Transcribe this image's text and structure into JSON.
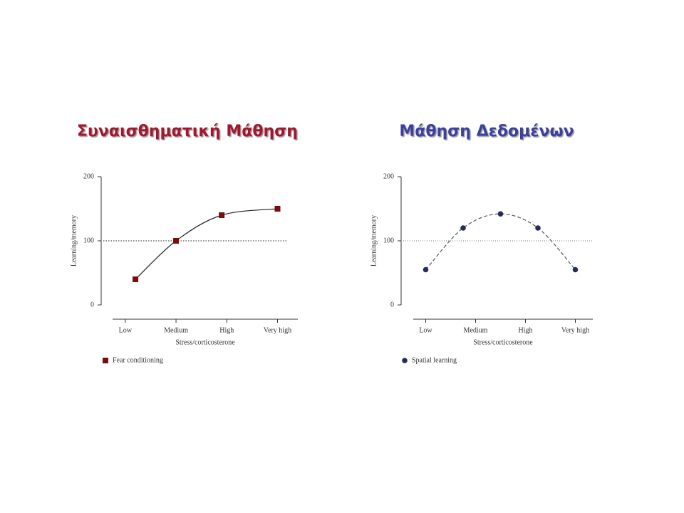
{
  "chart_data": [
    {
      "type": "line",
      "title": "Συναισθηματική Μάθηση",
      "title_color": "#a3182f",
      "xlabel": "Stress/corticosterone",
      "ylabel": "Learning/memory",
      "xlim": [
        0.75,
        4.4
      ],
      "ylim": [
        0,
        200
      ],
      "xticks": [
        {
          "value": 1,
          "label": "Low"
        },
        {
          "value": 2,
          "label": "Medium"
        },
        {
          "value": 3,
          "label": "High"
        },
        {
          "value": 4,
          "label": "Very high"
        }
      ],
      "yticks": [
        0,
        100,
        200
      ],
      "reference_line": 100,
      "series": [
        {
          "name": "Fear conditioning",
          "color": "#7a0c0c",
          "marker": "square",
          "line_style": "solid",
          "x": [
            1.2,
            2.0,
            2.9,
            4.0
          ],
          "values": [
            40,
            100,
            140,
            150
          ]
        }
      ]
    },
    {
      "type": "line",
      "title": "Μάθηση Δεδομένων",
      "title_color": "#3b3f9e",
      "xlabel": "Stress/corticosterone",
      "ylabel": "Learning/memory",
      "xlim": [
        0.75,
        4.35
      ],
      "ylim": [
        0,
        200
      ],
      "xticks": [
        {
          "value": 1,
          "label": "Low"
        },
        {
          "value": 2,
          "label": "Medium"
        },
        {
          "value": 3,
          "label": "High"
        },
        {
          "value": 4,
          "label": "Very high"
        }
      ],
      "yticks": [
        0,
        100,
        200
      ],
      "reference_line": 100,
      "series": [
        {
          "name": "Spatial learning",
          "color": "#262c5a",
          "marker": "circle",
          "line_style": "dashed",
          "x": [
            1.0,
            1.75,
            2.5,
            3.25,
            4.0
          ],
          "values": [
            55,
            120,
            142,
            120,
            55
          ]
        }
      ]
    }
  ]
}
